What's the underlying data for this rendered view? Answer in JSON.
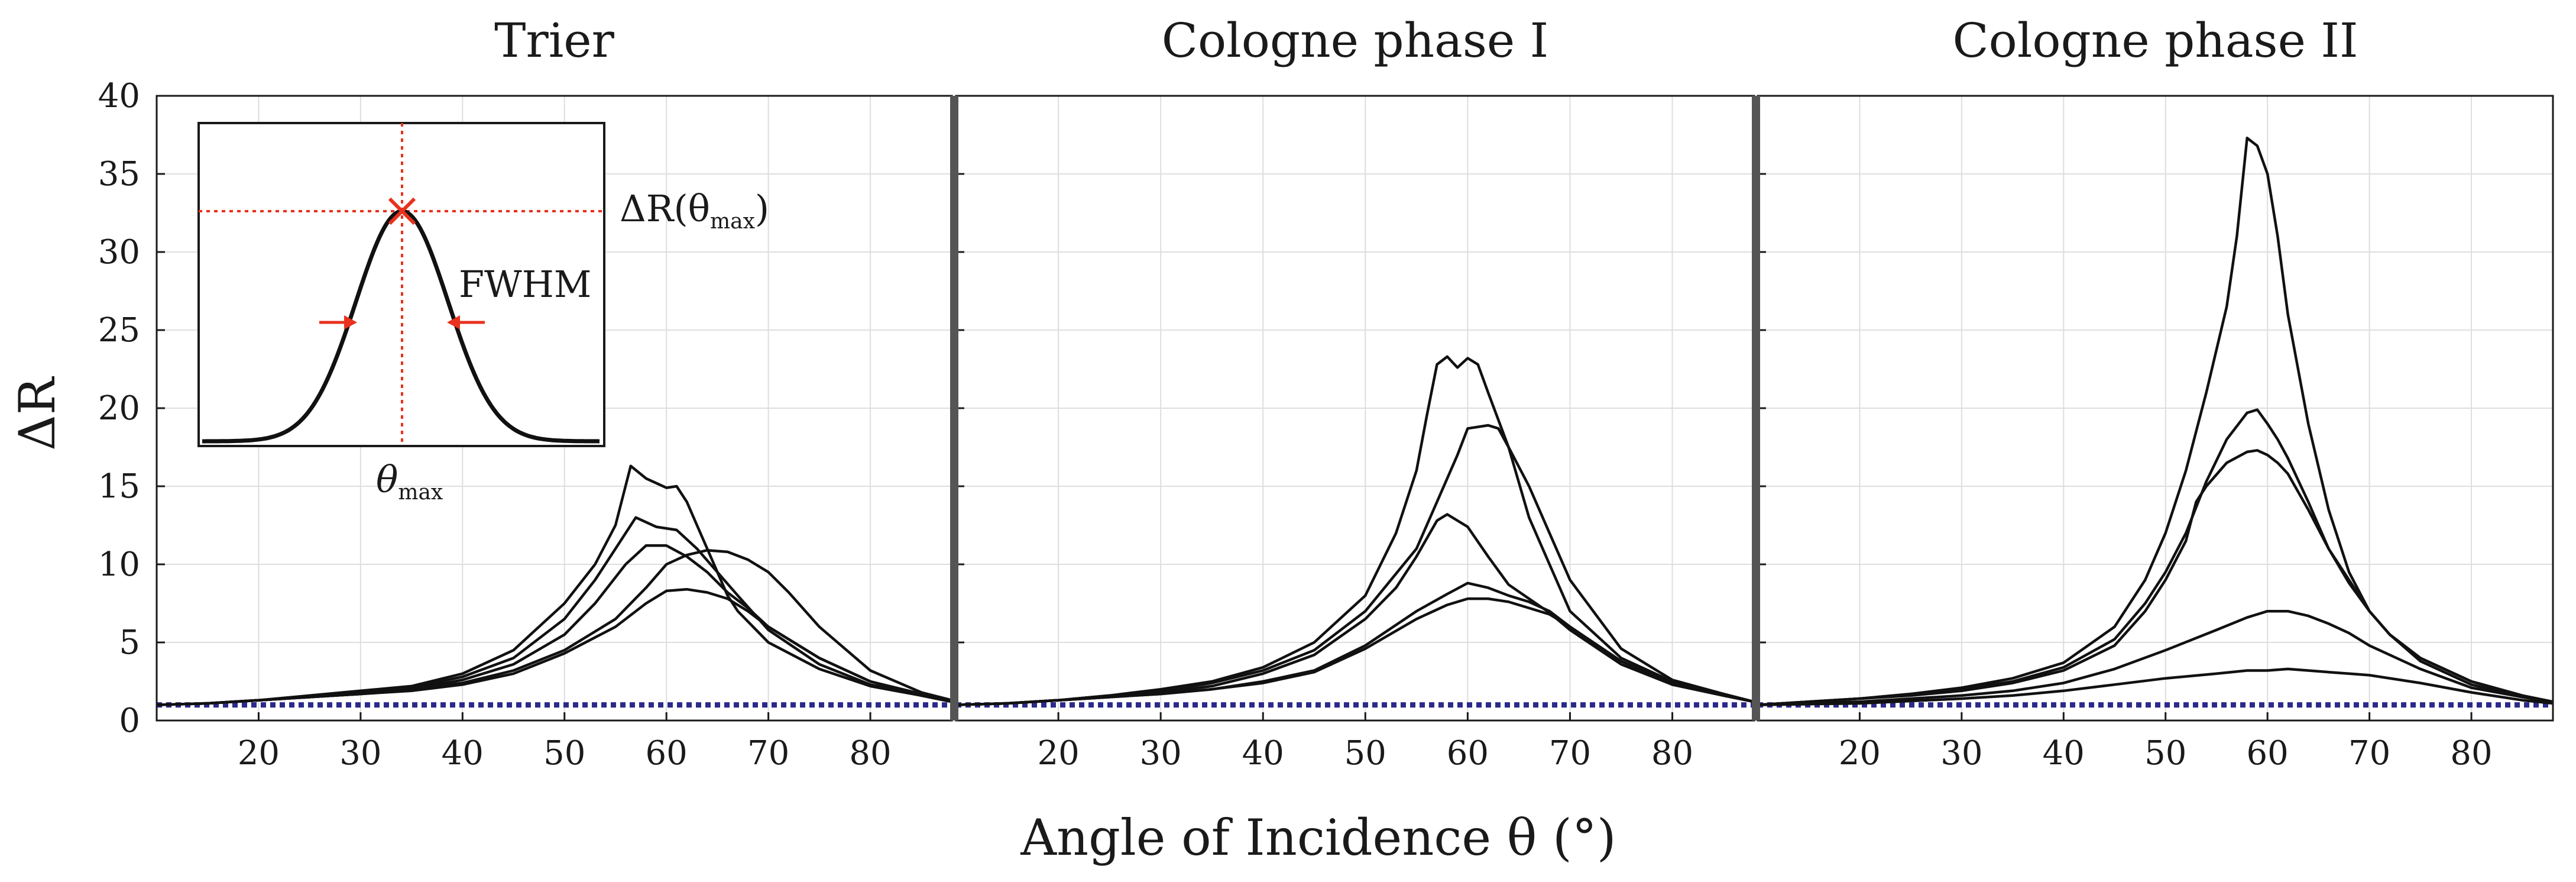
{
  "figure": {
    "xlabel": "Angle of Incidence θ (°)",
    "ylabel": "ΔR"
  },
  "inset": {
    "label_peak": "ΔR(θmax)",
    "label_peak_main": "ΔR(θ",
    "label_peak_sub": "max",
    "label_peak_close": ")",
    "label_width": "FWHM",
    "label_theta": "θ",
    "label_theta_sub": "max",
    "colors": {
      "curve": "#111111",
      "marker": "#e8321e"
    }
  },
  "colors": {
    "curve": "#111111",
    "baseline": "#2b2a8c",
    "grid": "#dedede",
    "axis": "#1a1a1a",
    "separator": "#555555"
  },
  "chart_data": [
    {
      "type": "line",
      "title": "Trier",
      "xlim": [
        10,
        88
      ],
      "ylim": [
        0,
        40
      ],
      "xticks": [
        20,
        30,
        40,
        50,
        60,
        70,
        80
      ],
      "yticks": [
        0,
        5,
        10,
        15,
        20,
        25,
        30,
        35,
        40
      ],
      "grid": true,
      "baseline": 1,
      "series": [
        {
          "x": [
            10,
            15,
            20,
            25,
            30,
            35,
            40,
            45,
            50,
            53,
            55,
            56.5,
            58,
            60,
            61,
            62,
            63,
            64,
            65,
            66,
            67,
            70,
            75,
            80,
            85,
            88
          ],
          "y": [
            1,
            1.1,
            1.3,
            1.6,
            1.9,
            2.2,
            3,
            4.5,
            7.5,
            10,
            12.5,
            16.3,
            15.5,
            14.9,
            15,
            14,
            12.5,
            11,
            9.5,
            8,
            7,
            5,
            3.3,
            2.2,
            1.6,
            1.2
          ]
        },
        {
          "x": [
            10,
            15,
            20,
            25,
            30,
            35,
            40,
            45,
            50,
            53,
            55,
            57,
            59,
            61,
            63,
            65,
            67,
            70,
            75,
            80,
            85,
            88
          ],
          "y": [
            1,
            1.1,
            1.3,
            1.5,
            1.8,
            2.1,
            2.8,
            4,
            6.5,
            9,
            11,
            13,
            12.4,
            12.2,
            11,
            9.5,
            8,
            5.8,
            3.6,
            2.3,
            1.6,
            1.2
          ]
        },
        {
          "x": [
            10,
            15,
            20,
            25,
            30,
            35,
            40,
            45,
            50,
            53,
            56,
            58,
            60,
            62,
            64,
            66,
            68,
            70,
            75,
            80,
            85,
            88
          ],
          "y": [
            1,
            1.1,
            1.3,
            1.5,
            1.7,
            2,
            2.6,
            3.6,
            5.5,
            7.5,
            10,
            11.2,
            11.2,
            10.5,
            9.5,
            8.2,
            7.2,
            6,
            4,
            2.5,
            1.7,
            1.2
          ]
        },
        {
          "x": [
            10,
            15,
            20,
            25,
            30,
            35,
            40,
            45,
            50,
            55,
            58,
            60,
            62,
            64,
            66,
            68,
            70,
            72,
            75,
            80,
            85,
            88
          ],
          "y": [
            1,
            1.1,
            1.3,
            1.5,
            1.7,
            2,
            2.4,
            3.2,
            4.5,
            6.5,
            8.5,
            10,
            10.6,
            10.9,
            10.8,
            10.3,
            9.5,
            8.2,
            6,
            3.2,
            1.8,
            1.3
          ]
        },
        {
          "x": [
            10,
            15,
            20,
            25,
            30,
            35,
            40,
            45,
            50,
            55,
            58,
            60,
            62,
            64,
            66,
            68,
            70,
            75,
            80,
            85,
            88
          ],
          "y": [
            1,
            1.1,
            1.3,
            1.5,
            1.7,
            1.9,
            2.3,
            3,
            4.3,
            6,
            7.5,
            8.3,
            8.4,
            8.2,
            7.8,
            7,
            6,
            4,
            2.5,
            1.6,
            1.2
          ]
        }
      ]
    },
    {
      "type": "line",
      "title": "Cologne phase I",
      "xlim": [
        10,
        88
      ],
      "ylim": [
        0,
        40
      ],
      "xticks": [
        20,
        30,
        40,
        50,
        60,
        70,
        80
      ],
      "yticks": [
        0,
        5,
        10,
        15,
        20,
        25,
        30,
        35,
        40
      ],
      "grid": true,
      "baseline": 1,
      "series": [
        {
          "x": [
            10,
            15,
            20,
            25,
            30,
            35,
            40,
            45,
            50,
            53,
            55,
            56,
            57,
            58,
            59,
            60,
            61,
            62,
            64,
            66,
            68,
            70,
            75,
            80,
            85,
            88
          ],
          "y": [
            1,
            1.1,
            1.3,
            1.6,
            2,
            2.5,
            3.4,
            5,
            8,
            12,
            16,
            19.5,
            22.8,
            23.3,
            22.6,
            23.2,
            22.8,
            21,
            17.5,
            13,
            10,
            7,
            4,
            2.5,
            1.6,
            1.2
          ]
        },
        {
          "x": [
            10,
            15,
            20,
            25,
            30,
            35,
            40,
            45,
            50,
            55,
            57,
            59,
            60,
            61,
            62,
            63,
            64,
            66,
            68,
            70,
            75,
            80,
            85,
            88
          ],
          "y": [
            1,
            1.1,
            1.3,
            1.6,
            1.9,
            2.4,
            3.2,
            4.5,
            7,
            11,
            14,
            17,
            18.7,
            18.8,
            18.9,
            18.7,
            17.5,
            15,
            12,
            9,
            4.6,
            2.6,
            1.7,
            1.2
          ]
        },
        {
          "x": [
            10,
            15,
            20,
            25,
            30,
            35,
            40,
            45,
            50,
            53,
            55,
            57,
            58,
            60,
            62,
            64,
            66,
            68,
            70,
            75,
            80,
            85,
            88
          ],
          "y": [
            1,
            1.1,
            1.3,
            1.5,
            1.8,
            2.2,
            3,
            4.2,
            6.5,
            8.5,
            10.5,
            12.8,
            13.2,
            12.4,
            10.5,
            8.7,
            7.8,
            6.9,
            5.8,
            3.6,
            2.3,
            1.6,
            1.2
          ]
        },
        {
          "x": [
            10,
            15,
            20,
            25,
            30,
            35,
            40,
            45,
            50,
            55,
            58,
            60,
            62,
            64,
            66,
            68,
            70,
            75,
            80,
            85,
            88
          ],
          "y": [
            1,
            1.1,
            1.3,
            1.5,
            1.7,
            2,
            2.5,
            3.2,
            4.8,
            7,
            8.1,
            8.8,
            8.5,
            8,
            7.6,
            7,
            6,
            3.8,
            2.4,
            1.6,
            1.2
          ]
        },
        {
          "x": [
            10,
            15,
            20,
            25,
            30,
            35,
            40,
            45,
            50,
            55,
            58,
            60,
            62,
            64,
            66,
            68,
            70,
            75,
            80,
            85,
            88
          ],
          "y": [
            1,
            1.1,
            1.3,
            1.5,
            1.7,
            2,
            2.4,
            3.1,
            4.6,
            6.5,
            7.4,
            7.8,
            7.8,
            7.6,
            7.2,
            6.8,
            6,
            3.8,
            2.3,
            1.6,
            1.2
          ]
        }
      ]
    },
    {
      "type": "line",
      "title": "Cologne phase II",
      "xlim": [
        10,
        88
      ],
      "ylim": [
        0,
        40
      ],
      "xticks": [
        20,
        30,
        40,
        50,
        60,
        70,
        80
      ],
      "yticks": [
        0,
        5,
        10,
        15,
        20,
        25,
        30,
        35,
        40
      ],
      "grid": true,
      "baseline": 1,
      "series": [
        {
          "x": [
            10,
            15,
            20,
            25,
            30,
            35,
            40,
            45,
            48,
            50,
            52,
            54,
            56,
            57,
            58,
            59,
            60,
            61,
            62,
            64,
            66,
            68,
            70,
            72,
            75,
            80,
            85,
            88
          ],
          "y": [
            1,
            1.2,
            1.4,
            1.7,
            2.1,
            2.7,
            3.7,
            6,
            9,
            12,
            16,
            21,
            26.5,
            31,
            37.3,
            36.8,
            35,
            31,
            26,
            19,
            13.5,
            9.5,
            7,
            5.5,
            3.8,
            2.3,
            1.5,
            1.2
          ]
        },
        {
          "x": [
            10,
            15,
            20,
            25,
            30,
            35,
            40,
            45,
            48,
            50,
            52,
            54,
            56,
            58,
            59,
            60,
            61,
            62,
            64,
            66,
            68,
            70,
            72,
            75,
            80,
            85,
            88
          ],
          "y": [
            1,
            1.2,
            1.4,
            1.7,
            2,
            2.5,
            3.4,
            5.2,
            7.5,
            9.5,
            12,
            15.3,
            18,
            19.7,
            19.9,
            19,
            18,
            16.8,
            14,
            11,
            8.8,
            7,
            5.5,
            4,
            2.5,
            1.6,
            1.2
          ]
        },
        {
          "x": [
            10,
            15,
            20,
            25,
            30,
            35,
            40,
            45,
            48,
            50,
            52,
            53,
            54,
            56,
            58,
            59,
            60,
            61,
            62,
            64,
            66,
            68,
            70,
            72,
            75,
            80,
            85,
            88
          ],
          "y": [
            1,
            1.2,
            1.4,
            1.6,
            1.9,
            2.4,
            3.2,
            4.8,
            7,
            9,
            11.5,
            14,
            15,
            16.5,
            17.2,
            17.3,
            17,
            16.5,
            15.8,
            13.5,
            11,
            9,
            7,
            5.5,
            4,
            2.5,
            1.6,
            1.2
          ]
        },
        {
          "x": [
            10,
            15,
            20,
            25,
            30,
            35,
            40,
            45,
            50,
            55,
            58,
            60,
            62,
            64,
            66,
            68,
            70,
            75,
            80,
            85,
            88
          ],
          "y": [
            1,
            1.1,
            1.2,
            1.4,
            1.6,
            1.9,
            2.4,
            3.3,
            4.5,
            5.8,
            6.6,
            7,
            7,
            6.7,
            6.2,
            5.6,
            4.8,
            3.3,
            2.1,
            1.5,
            1.2
          ]
        },
        {
          "x": [
            10,
            15,
            20,
            25,
            30,
            35,
            40,
            45,
            50,
            55,
            58,
            60,
            62,
            64,
            66,
            68,
            70,
            75,
            80,
            85,
            88
          ],
          "y": [
            1,
            1.05,
            1.1,
            1.25,
            1.4,
            1.6,
            1.9,
            2.3,
            2.7,
            3,
            3.2,
            3.2,
            3.3,
            3.2,
            3.1,
            3,
            2.9,
            2.4,
            1.8,
            1.3,
            1.1
          ]
        }
      ]
    }
  ]
}
